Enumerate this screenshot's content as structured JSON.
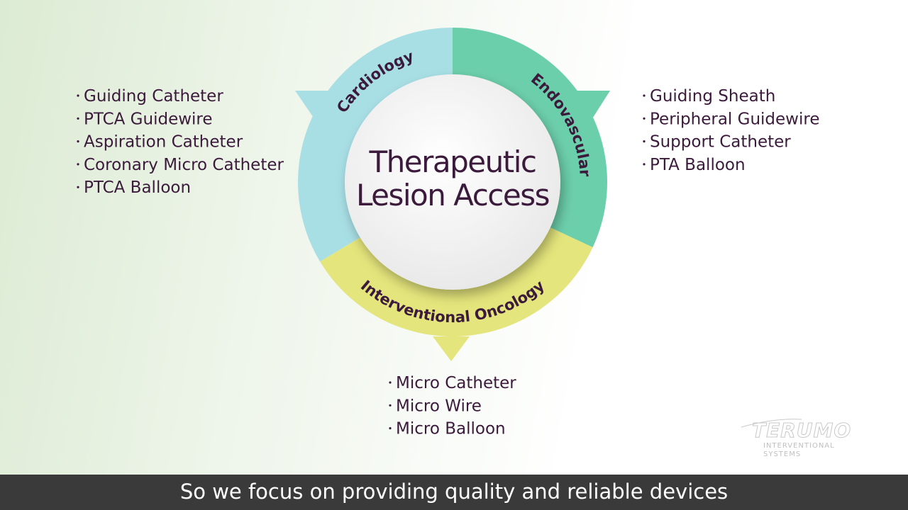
{
  "center_title": [
    "Therapeutic",
    "Lesion Access"
  ],
  "segments": [
    {
      "label": "Cardiology",
      "items": [
        "Guiding Catheter",
        "PTCA Guidewire",
        "Aspiration Catheter",
        "Coronary Micro Catheter",
        "PTCA Balloon"
      ]
    },
    {
      "label": "Endovascular",
      "items": [
        "Guiding Sheath",
        "Peripheral Guidewire",
        "Support Catheter",
        "PTA Balloon"
      ]
    },
    {
      "label": "Interventional Oncology",
      "items": [
        "Micro Catheter",
        "Micro Wire",
        "Micro Balloon"
      ]
    }
  ],
  "logo": {
    "name": "TERUMO",
    "subtitle": [
      "INTERVENTIONAL",
      "SYSTEMS"
    ]
  },
  "caption": "So we focus on providing quality and reliable devices"
}
